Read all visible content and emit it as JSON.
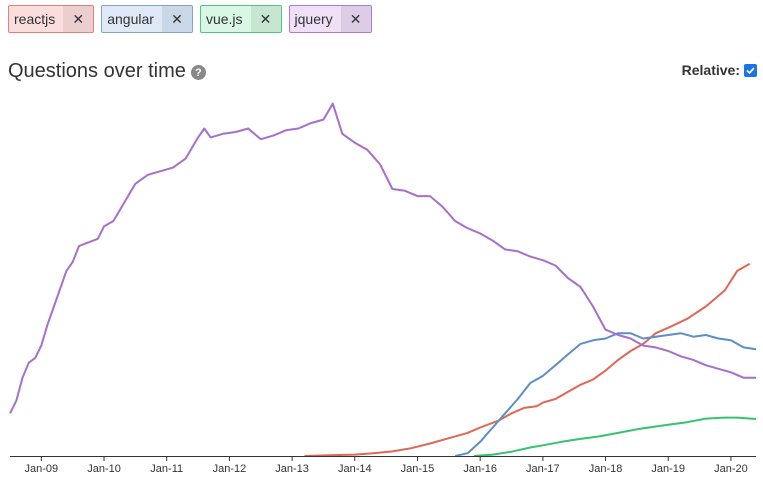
{
  "tags": [
    {
      "label": "reactjs",
      "close": "✕",
      "bg": "#f9dedd",
      "close_bg": "#ebcfce",
      "border": "#e0807a"
    },
    {
      "label": "angular",
      "close": "✕",
      "bg": "#dfe9f6",
      "close_bg": "#cad7e6",
      "border": "#7fa3d1"
    },
    {
      "label": "vue.js",
      "close": "✕",
      "bg": "#d9f7e4",
      "close_bg": "#c6e6d1",
      "border": "#4fc77f"
    },
    {
      "label": "jquery",
      "close": "✕",
      "bg": "#efdff7",
      "close_bg": "#ddcce6",
      "border": "#b27acd"
    }
  ],
  "header": {
    "title": "Questions over time",
    "help_icon": "?",
    "relative_label": "Relative:",
    "relative_checked": true
  },
  "chart_data": {
    "type": "line",
    "x_ticks": [
      "Jan-09",
      "Jan-10",
      "Jan-11",
      "Jan-12",
      "Jan-13",
      "Jan-14",
      "Jan-15",
      "Jan-16",
      "Jan-17",
      "Jan-18",
      "Jan-19",
      "Jan-20"
    ],
    "x_range": [
      2008.5,
      2020.4
    ],
    "y_range": [
      0,
      1
    ],
    "grid": false,
    "y_axis_shown": false,
    "series": [
      {
        "name": "reactjs",
        "color": "#e06655",
        "points": [
          [
            2013.2,
            0
          ],
          [
            2013.6,
            0.002
          ],
          [
            2014.0,
            0.004
          ],
          [
            2014.3,
            0.008
          ],
          [
            2014.6,
            0.013
          ],
          [
            2014.9,
            0.022
          ],
          [
            2015.2,
            0.035
          ],
          [
            2015.5,
            0.05
          ],
          [
            2015.8,
            0.065
          ],
          [
            2016.0,
            0.08
          ],
          [
            2016.3,
            0.1
          ],
          [
            2016.5,
            0.12
          ],
          [
            2016.7,
            0.135
          ],
          [
            2016.9,
            0.14
          ],
          [
            2017.0,
            0.15
          ],
          [
            2017.2,
            0.16
          ],
          [
            2017.4,
            0.18
          ],
          [
            2017.6,
            0.2
          ],
          [
            2017.8,
            0.215
          ],
          [
            2018.0,
            0.24
          ],
          [
            2018.2,
            0.27
          ],
          [
            2018.4,
            0.295
          ],
          [
            2018.6,
            0.315
          ],
          [
            2018.8,
            0.345
          ],
          [
            2019.0,
            0.36
          ],
          [
            2019.3,
            0.385
          ],
          [
            2019.6,
            0.42
          ],
          [
            2019.9,
            0.465
          ],
          [
            2020.1,
            0.52
          ],
          [
            2020.3,
            0.54
          ]
        ]
      },
      {
        "name": "angular",
        "color": "#5b8fcc",
        "points": [
          [
            2015.6,
            0
          ],
          [
            2015.8,
            0.008
          ],
          [
            2016.0,
            0.04
          ],
          [
            2016.2,
            0.08
          ],
          [
            2016.4,
            0.12
          ],
          [
            2016.6,
            0.16
          ],
          [
            2016.8,
            0.205
          ],
          [
            2017.0,
            0.225
          ],
          [
            2017.2,
            0.255
          ],
          [
            2017.4,
            0.285
          ],
          [
            2017.6,
            0.315
          ],
          [
            2017.8,
            0.325
          ],
          [
            2018.0,
            0.33
          ],
          [
            2018.2,
            0.345
          ],
          [
            2018.4,
            0.345
          ],
          [
            2018.6,
            0.33
          ],
          [
            2018.8,
            0.335
          ],
          [
            2019.0,
            0.34
          ],
          [
            2019.2,
            0.345
          ],
          [
            2019.4,
            0.335
          ],
          [
            2019.6,
            0.34
          ],
          [
            2019.8,
            0.33
          ],
          [
            2020.0,
            0.325
          ],
          [
            2020.2,
            0.305
          ],
          [
            2020.4,
            0.3
          ]
        ]
      },
      {
        "name": "vue.js",
        "color": "#37c36e",
        "points": [
          [
            2015.9,
            0
          ],
          [
            2016.2,
            0.004
          ],
          [
            2016.5,
            0.012
          ],
          [
            2016.8,
            0.024
          ],
          [
            2017.0,
            0.03
          ],
          [
            2017.3,
            0.04
          ],
          [
            2017.6,
            0.048
          ],
          [
            2017.9,
            0.055
          ],
          [
            2018.2,
            0.065
          ],
          [
            2018.5,
            0.075
          ],
          [
            2018.8,
            0.083
          ],
          [
            2019.0,
            0.088
          ],
          [
            2019.3,
            0.095
          ],
          [
            2019.6,
            0.105
          ],
          [
            2019.9,
            0.108
          ],
          [
            2020.1,
            0.108
          ],
          [
            2020.4,
            0.104
          ]
        ]
      },
      {
        "name": "jquery",
        "color": "#a66fce",
        "points": [
          [
            2008.5,
            0.12
          ],
          [
            2008.6,
            0.155
          ],
          [
            2008.7,
            0.22
          ],
          [
            2008.8,
            0.262
          ],
          [
            2008.9,
            0.275
          ],
          [
            2009.0,
            0.31
          ],
          [
            2009.1,
            0.37
          ],
          [
            2009.2,
            0.42
          ],
          [
            2009.3,
            0.47
          ],
          [
            2009.4,
            0.52
          ],
          [
            2009.5,
            0.545
          ],
          [
            2009.6,
            0.59
          ],
          [
            2009.75,
            0.6
          ],
          [
            2009.9,
            0.61
          ],
          [
            2010.0,
            0.645
          ],
          [
            2010.15,
            0.66
          ],
          [
            2010.3,
            0.705
          ],
          [
            2010.5,
            0.765
          ],
          [
            2010.7,
            0.79
          ],
          [
            2010.9,
            0.8
          ],
          [
            2011.1,
            0.81
          ],
          [
            2011.3,
            0.835
          ],
          [
            2011.5,
            0.895
          ],
          [
            2011.6,
            0.92
          ],
          [
            2011.7,
            0.895
          ],
          [
            2011.9,
            0.905
          ],
          [
            2012.1,
            0.91
          ],
          [
            2012.3,
            0.92
          ],
          [
            2012.5,
            0.89
          ],
          [
            2012.7,
            0.9
          ],
          [
            2012.9,
            0.915
          ],
          [
            2013.1,
            0.92
          ],
          [
            2013.3,
            0.935
          ],
          [
            2013.5,
            0.945
          ],
          [
            2013.65,
            0.99
          ],
          [
            2013.8,
            0.905
          ],
          [
            2014.0,
            0.88
          ],
          [
            2014.2,
            0.86
          ],
          [
            2014.4,
            0.82
          ],
          [
            2014.6,
            0.75
          ],
          [
            2014.8,
            0.745
          ],
          [
            2015.0,
            0.73
          ],
          [
            2015.2,
            0.73
          ],
          [
            2015.4,
            0.7
          ],
          [
            2015.6,
            0.66
          ],
          [
            2015.8,
            0.64
          ],
          [
            2016.0,
            0.625
          ],
          [
            2016.2,
            0.605
          ],
          [
            2016.4,
            0.58
          ],
          [
            2016.6,
            0.575
          ],
          [
            2016.8,
            0.56
          ],
          [
            2017.0,
            0.55
          ],
          [
            2017.2,
            0.535
          ],
          [
            2017.4,
            0.5
          ],
          [
            2017.6,
            0.475
          ],
          [
            2017.8,
            0.42
          ],
          [
            2018.0,
            0.355
          ],
          [
            2018.2,
            0.34
          ],
          [
            2018.4,
            0.33
          ],
          [
            2018.6,
            0.31
          ],
          [
            2018.8,
            0.305
          ],
          [
            2019.0,
            0.295
          ],
          [
            2019.2,
            0.28
          ],
          [
            2019.4,
            0.27
          ],
          [
            2019.6,
            0.255
          ],
          [
            2019.8,
            0.245
          ],
          [
            2020.0,
            0.235
          ],
          [
            2020.2,
            0.22
          ],
          [
            2020.4,
            0.22
          ]
        ]
      }
    ]
  }
}
